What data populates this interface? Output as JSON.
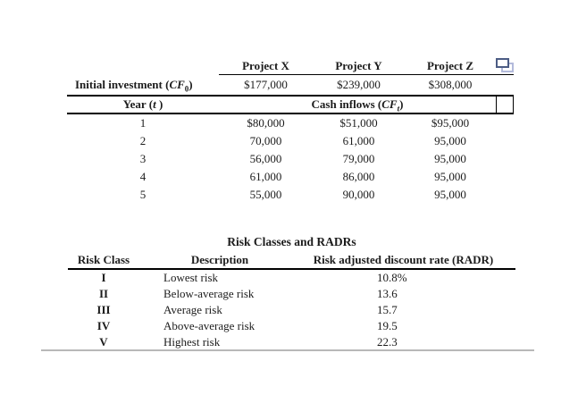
{
  "colors": {
    "text": "#1c1c1c",
    "copy_icon_dark": "#4c5c84",
    "copy_icon_light": "#b3badb",
    "bottom_divider_gray": "#b8b8b8"
  },
  "icons": {
    "copy": "copy-icon"
  },
  "projects_table": {
    "column_headers": [
      "Project X",
      "Project Y",
      "Project Z"
    ],
    "initial_investment": {
      "label_pre": "Initial investment (",
      "symbol": "CF",
      "subscript": "0",
      "label_post": ")",
      "values": [
        "$177,000",
        "$239,000",
        "$308,000"
      ]
    },
    "band": {
      "year_pre": "Year (",
      "year_symbol": "t",
      "year_post": " )",
      "inflows_pre": "Cash inflows (",
      "inflows_symbol": "CF",
      "inflows_subscript": "t",
      "inflows_post": ")"
    },
    "rows": [
      {
        "year": "1",
        "values": [
          "$80,000",
          "$51,000",
          "$95,000"
        ]
      },
      {
        "year": "2",
        "values": [
          "70,000",
          "61,000",
          "95,000"
        ]
      },
      {
        "year": "3",
        "values": [
          "56,000",
          "79,000",
          "95,000"
        ]
      },
      {
        "year": "4",
        "values": [
          "61,000",
          "86,000",
          "95,000"
        ]
      },
      {
        "year": "5",
        "values": [
          "55,000",
          "90,000",
          "95,000"
        ]
      }
    ]
  },
  "radr_table": {
    "title": "Risk Classes and RADRs",
    "headers": [
      "Risk Class",
      "Description",
      "Risk adjusted discount rate (RADR)"
    ],
    "rows": [
      {
        "risk_class": "I",
        "description": "Lowest risk",
        "radr": "10.8%"
      },
      {
        "risk_class": "II",
        "description": "Below-average risk",
        "radr": "13.6"
      },
      {
        "risk_class": "III",
        "description": "Average risk",
        "radr": "15.7"
      },
      {
        "risk_class": "IV",
        "description": "Above-average risk",
        "radr": "19.5"
      },
      {
        "risk_class": "V",
        "description": "Highest risk",
        "radr": "22.3"
      }
    ]
  }
}
